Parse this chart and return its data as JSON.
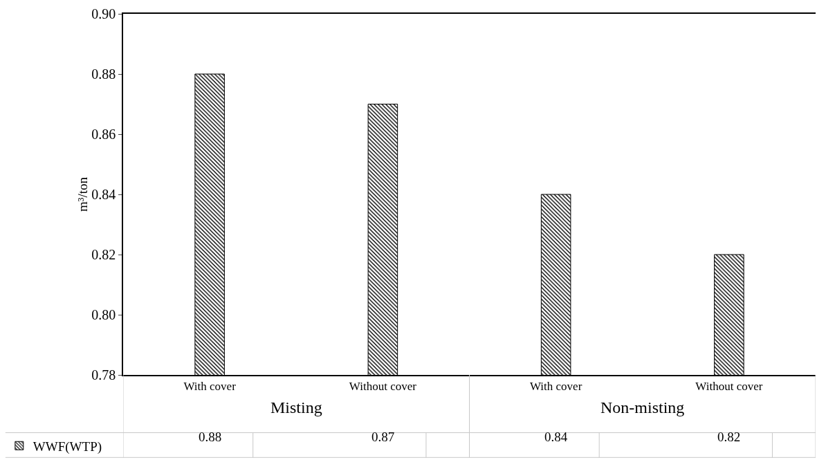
{
  "chart_data": {
    "type": "bar",
    "ylabel": "m³/ton",
    "categories": [
      "With cover",
      "Without cover",
      "With cover",
      "Without cover"
    ],
    "series": [
      {
        "name": "WWF(WTP)",
        "color": "#000000",
        "values": [
          0.88,
          0.87,
          0.84,
          0.82
        ]
      }
    ],
    "ylim": [
      0.78,
      0.9
    ],
    "yticks": [
      0.78,
      {
        "value": 0.8,
        "label": "0.80"
      },
      0.82,
      0.84,
      0.86,
      0.88,
      {
        "value": 0.9,
        "label": "0.90"
      }
    ],
    "grid": false,
    "legend": "bottom left",
    "data_labels": true,
    "annotations": [
      "Misting",
      "Non-misting"
    ]
  }
}
